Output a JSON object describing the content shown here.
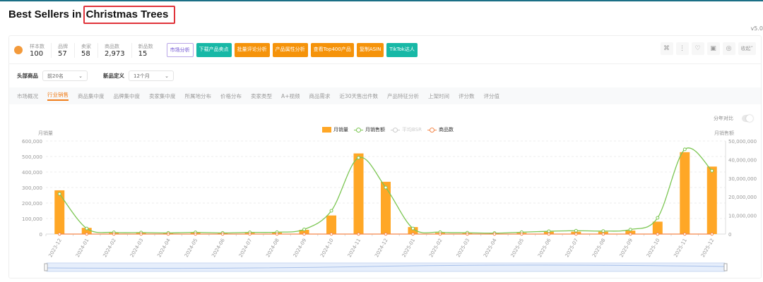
{
  "header": {
    "title_prefix": "Best Sellers in ",
    "title_highlight": "Christmas Trees",
    "version": "v5.0"
  },
  "stats": [
    {
      "label": "样本数",
      "value": "100"
    },
    {
      "label": "品牌",
      "value": "57"
    },
    {
      "label": "卖家",
      "value": "58"
    },
    {
      "label": "商品数",
      "value": "2,973"
    },
    {
      "label": "新品数",
      "value": "15"
    }
  ],
  "actions": [
    {
      "label": "市场分析",
      "style": "ai",
      "icon": "ai-icon"
    },
    {
      "label": "下载产品卖点",
      "style": "teal"
    },
    {
      "label": "批量评论分析",
      "style": "orange"
    },
    {
      "label": "产品属性分析",
      "style": "orange"
    },
    {
      "label": "查看Top400产品",
      "style": "orange"
    },
    {
      "label": "复制ASIN",
      "style": "orange"
    },
    {
      "label": "TikTok达人",
      "style": "teal"
    }
  ],
  "toolbar": {
    "icons": [
      "grid-icon",
      "more-vertical-icon",
      "heart-icon",
      "video-icon",
      "settings-icon"
    ],
    "collapse_label": "收起"
  },
  "filters": {
    "top_label": "头部商品",
    "top_value": "前20名",
    "new_label": "新品定义",
    "new_value": "12个月"
  },
  "tabs": [
    "市场概况",
    "行业销售",
    "商品集中度",
    "品牌集中度",
    "卖家集中度",
    "所属地分布",
    "价格分布",
    "卖家类型",
    "A+视频",
    "商品需求",
    "近30天售出件数",
    "产品特征分析",
    "上架时间",
    "评分数",
    "评分值"
  ],
  "active_tab": 1,
  "toggle": {
    "label": "分年对比",
    "on": false
  },
  "colors": {
    "bar": "#ffa726",
    "revenue": "#7cc653",
    "bsr": "#cccccc",
    "count": "#f4874b",
    "accent": "#f07d1a"
  },
  "chart_data": {
    "type": "bar",
    "categories": [
      "2023-12",
      "2024-01",
      "2024-02",
      "2024-03",
      "2024-04",
      "2024-05",
      "2024-06",
      "2024-07",
      "2024-08",
      "2024-09",
      "2024-10",
      "2024-11",
      "2024-12",
      "2025-01",
      "2025-02",
      "2025-03",
      "2025-04",
      "2025-05",
      "2025-06",
      "2025-07",
      "2025-08",
      "2025-09",
      "2025-10",
      "2025-11",
      "2025-12"
    ],
    "ylabel_left": "月销量",
    "ylabel_right": "月销售额",
    "ylim_left": [
      0,
      600000
    ],
    "ylim_right": [
      0,
      50000000
    ],
    "yticks_left": [
      "0",
      "100,000",
      "200,000",
      "300,000",
      "400,000",
      "500,000",
      "600,000"
    ],
    "yticks_right": [
      "0",
      "10,000,000",
      "20,000,000",
      "30,000,000",
      "40,000,000",
      "50,000,000"
    ],
    "grid": true,
    "legend": "top-center",
    "series": [
      {
        "name": "月销量",
        "type": "bar",
        "axis": "left",
        "values": [
          282000,
          40000,
          8000,
          7000,
          5000,
          9000,
          5000,
          8000,
          10000,
          27000,
          120000,
          520000,
          337000,
          45000,
          8000,
          6000,
          4000,
          8000,
          15000,
          15000,
          15000,
          22000,
          80000,
          528000,
          435000
        ]
      },
      {
        "name": "月销售额",
        "type": "line",
        "axis": "right",
        "values": [
          21600000,
          3000000,
          900000,
          800000,
          600000,
          900000,
          600000,
          900000,
          1000000,
          2500000,
          12500000,
          41000000,
          25000000,
          3000000,
          1000000,
          700000,
          500000,
          1000000,
          1500000,
          1800000,
          1600000,
          2400000,
          8700000,
          45500000,
          34000000
        ]
      },
      {
        "name": "平均BSR",
        "type": "line",
        "hidden": true
      },
      {
        "name": "商品数",
        "type": "line"
      }
    ]
  }
}
